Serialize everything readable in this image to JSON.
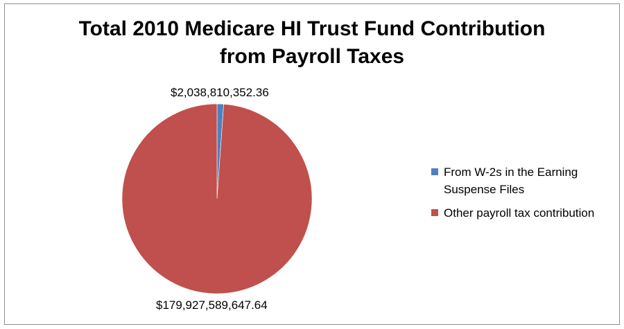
{
  "chart_data": {
    "type": "pie",
    "title_lines": [
      "Total 2010 Medicare HI Trust Fund Contribution",
      "from Payroll Taxes"
    ],
    "slices": [
      {
        "label_line1": "From W-2s in the Earning",
        "label_line2": "Suspense Files",
        "value": 2038810352.36,
        "display_value": "$2,038,810,352.36",
        "color": "#4f81bd"
      },
      {
        "label_line1": "Other payroll tax contribution",
        "label_line2": "",
        "value": 179927589647.64,
        "display_value": "$179,927,589,647.64",
        "color": "#c0504d"
      }
    ],
    "start_angle": "12 o'clock",
    "direction": "clockwise",
    "legend_position": "right"
  }
}
